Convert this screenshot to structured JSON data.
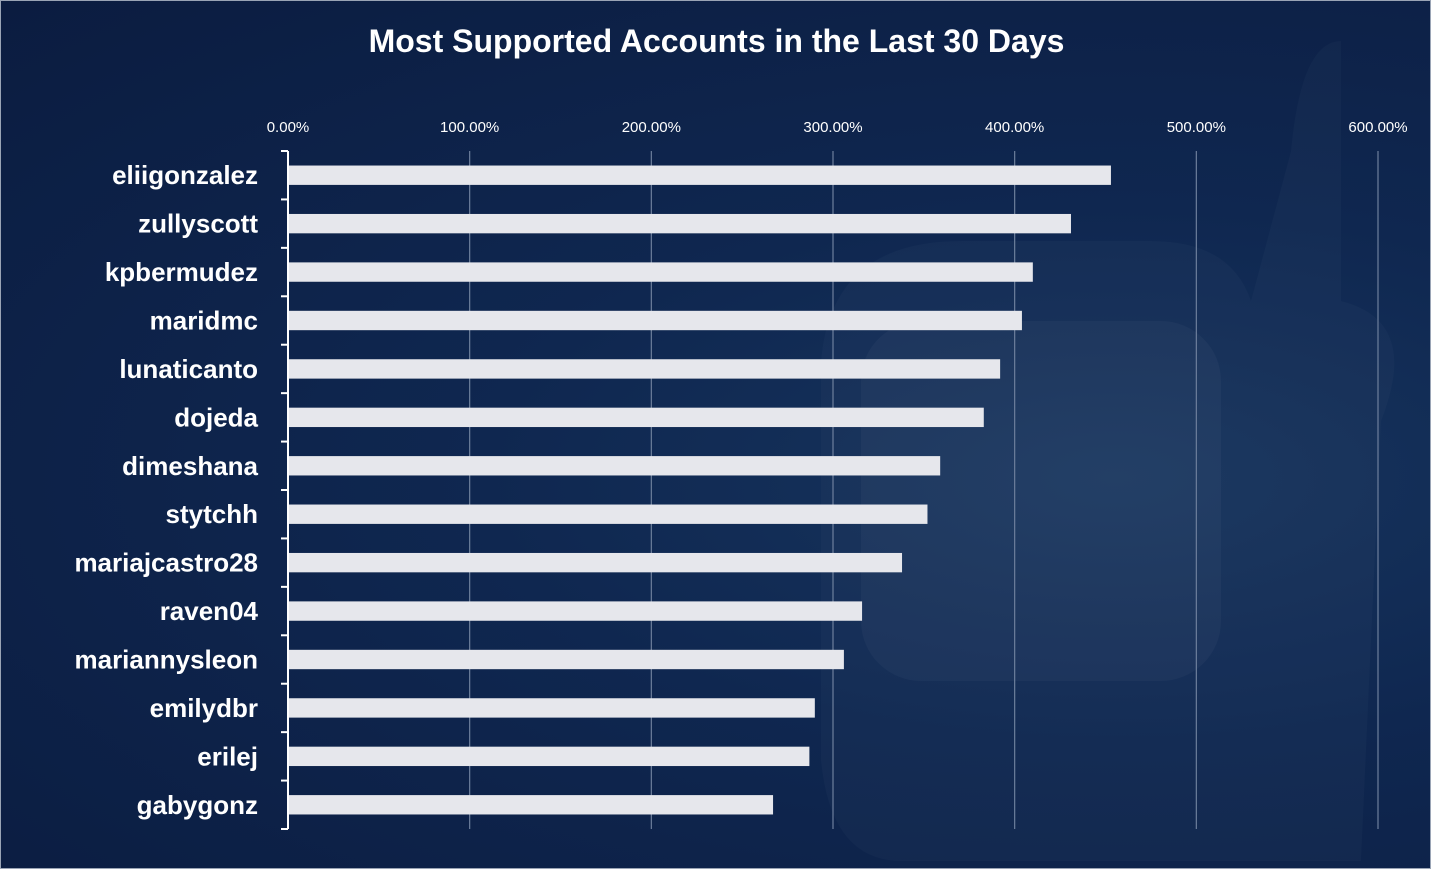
{
  "chart_data": {
    "type": "bar",
    "orientation": "horizontal",
    "title": "Most Supported Accounts in the Last 30 Days",
    "xlabel": "",
    "ylabel": "",
    "xlim": [
      0,
      6
    ],
    "x_ticks": [
      0,
      1,
      2,
      3,
      4,
      5,
      6
    ],
    "x_tick_labels": [
      "0.00%",
      "100.00%",
      "200.00%",
      "300.00%",
      "400.00%",
      "500.00%",
      "600.00%"
    ],
    "grid": true,
    "legend": "none",
    "categories": [
      "eliigonzalez",
      "zullyscott",
      "kpbermudez",
      "maridmc",
      "lunaticanto",
      "dojeda",
      "dimeshana",
      "stytchh",
      "mariajcastro28",
      "raven04",
      "mariannysleon",
      "emilydbr",
      "erilej",
      "gabygonz"
    ],
    "values": [
      4.53,
      4.31,
      4.1,
      4.04,
      3.92,
      3.83,
      3.59,
      3.52,
      3.38,
      3.16,
      3.06,
      2.9,
      2.87,
      2.67
    ],
    "colors": {
      "bar": "#e6e7ec",
      "grid": "#6d7f9c",
      "axis": "#ffffff",
      "text": "#ffffff",
      "background": "#0f2750"
    }
  }
}
